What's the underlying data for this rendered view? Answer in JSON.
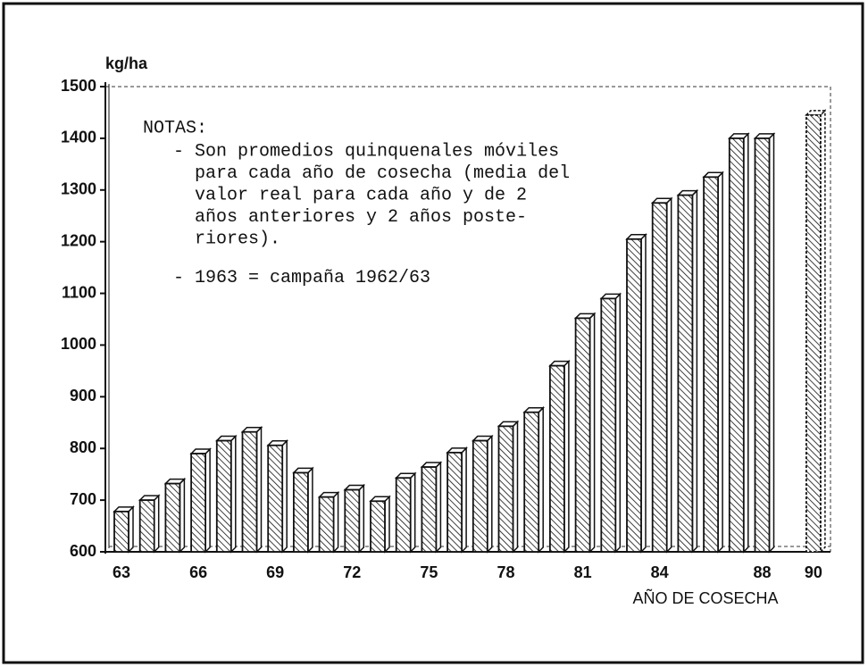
{
  "chart_data": {
    "type": "bar",
    "y_label": "kg/ha",
    "x_label": "AÑO DE COSECHA",
    "annotation": {
      "heading": "NOTAS:",
      "items": [
        [
          "- Son promedios quinquenales móviles",
          "para cada año de cosecha (media del",
          "valor real para cada año y de 2",
          "años anteriores y 2 años poste-",
          "riores)."
        ],
        [
          "- 1963 = campaña 1962/63"
        ]
      ]
    },
    "categories": [
      "63",
      null,
      null,
      "66",
      null,
      null,
      "69",
      null,
      null,
      "72",
      null,
      null,
      "75",
      null,
      null,
      "78",
      null,
      null,
      "81",
      null,
      null,
      "84",
      null,
      null,
      null,
      "88",
      null,
      "90"
    ],
    "values": [
      678,
      700,
      732,
      790,
      815,
      832,
      806,
      753,
      706,
      720,
      698,
      743,
      764,
      792,
      815,
      843,
      870,
      960,
      1052,
      1090,
      1205,
      1275,
      1290,
      1325,
      1400,
      1400,
      null,
      1445
    ],
    "bar_styles": [
      "solid",
      "solid",
      "solid",
      "solid",
      "solid",
      "solid",
      "solid",
      "solid",
      "solid",
      "solid",
      "solid",
      "solid",
      "solid",
      "solid",
      "solid",
      "solid",
      "solid",
      "solid",
      "solid",
      "solid",
      "solid",
      "solid",
      "solid",
      "solid",
      "solid",
      "solid",
      "solid",
      "dashed"
    ],
    "color": "#111111",
    "ylim": [
      600,
      1500
    ],
    "yticks": [
      600,
      700,
      800,
      900,
      1000,
      1100,
      1200,
      1300,
      1400,
      1500
    ]
  }
}
